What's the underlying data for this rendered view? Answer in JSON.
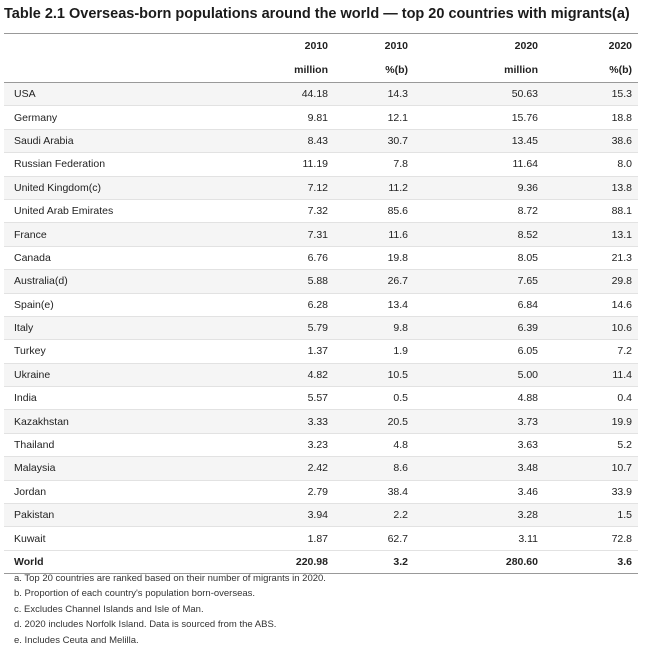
{
  "title": "Table 2.1 Overseas-born populations around the world — top 20 countries with migrants(a)",
  "headers": {
    "years": [
      "2010",
      "2010",
      "2020",
      "2020"
    ],
    "units": [
      "million",
      "%(b)",
      "million",
      "%(b)"
    ]
  },
  "rows": [
    [
      "USA",
      "44.18",
      "14.3",
      "50.63",
      "15.3"
    ],
    [
      "Germany",
      "9.81",
      "12.1",
      "15.76",
      "18.8"
    ],
    [
      "Saudi Arabia",
      "8.43",
      "30.7",
      "13.45",
      "38.6"
    ],
    [
      "Russian Federation",
      "11.19",
      "7.8",
      "11.64",
      "8.0"
    ],
    [
      "United Kingdom(c)",
      "7.12",
      "11.2",
      "9.36",
      "13.8"
    ],
    [
      "United Arab Emirates",
      "7.32",
      "85.6",
      "8.72",
      "88.1"
    ],
    [
      "France",
      "7.31",
      "11.6",
      "8.52",
      "13.1"
    ],
    [
      "Canada",
      "6.76",
      "19.8",
      "8.05",
      "21.3"
    ],
    [
      "Australia(d)",
      "5.88",
      "26.7",
      "7.65",
      "29.8"
    ],
    [
      "Spain(e)",
      "6.28",
      "13.4",
      "6.84",
      "14.6"
    ],
    [
      "Italy",
      "5.79",
      "9.8",
      "6.39",
      "10.6"
    ],
    [
      "Turkey",
      "1.37",
      "1.9",
      "6.05",
      "7.2"
    ],
    [
      "Ukraine",
      "4.82",
      "10.5",
      "5.00",
      "11.4"
    ],
    [
      "India",
      "5.57",
      "0.5",
      "4.88",
      "0.4"
    ],
    [
      "Kazakhstan",
      "3.33",
      "20.5",
      "3.73",
      "19.9"
    ],
    [
      "Thailand",
      "3.23",
      "4.8",
      "3.63",
      "5.2"
    ],
    [
      "Malaysia",
      "2.42",
      "8.6",
      "3.48",
      "10.7"
    ],
    [
      "Jordan",
      "2.79",
      "38.4",
      "3.46",
      "33.9"
    ],
    [
      "Pakistan",
      "3.94",
      "2.2",
      "3.28",
      "1.5"
    ],
    [
      "Kuwait",
      "1.87",
      "62.7",
      "3.11",
      "72.8"
    ]
  ],
  "total": [
    "World",
    "220.98",
    "3.2",
    "280.60",
    "3.6"
  ],
  "notes": [
    "a. Top 20 countries are ranked based on their number of migrants in 2020.",
    "b. Proportion of each country's population born-overseas.",
    "c. Excludes Channel Islands and Isle of Man.",
    "d. 2020 includes Norfolk Island. Data is sourced from the ABS.",
    "e. Includes Ceuta and Melilla."
  ]
}
